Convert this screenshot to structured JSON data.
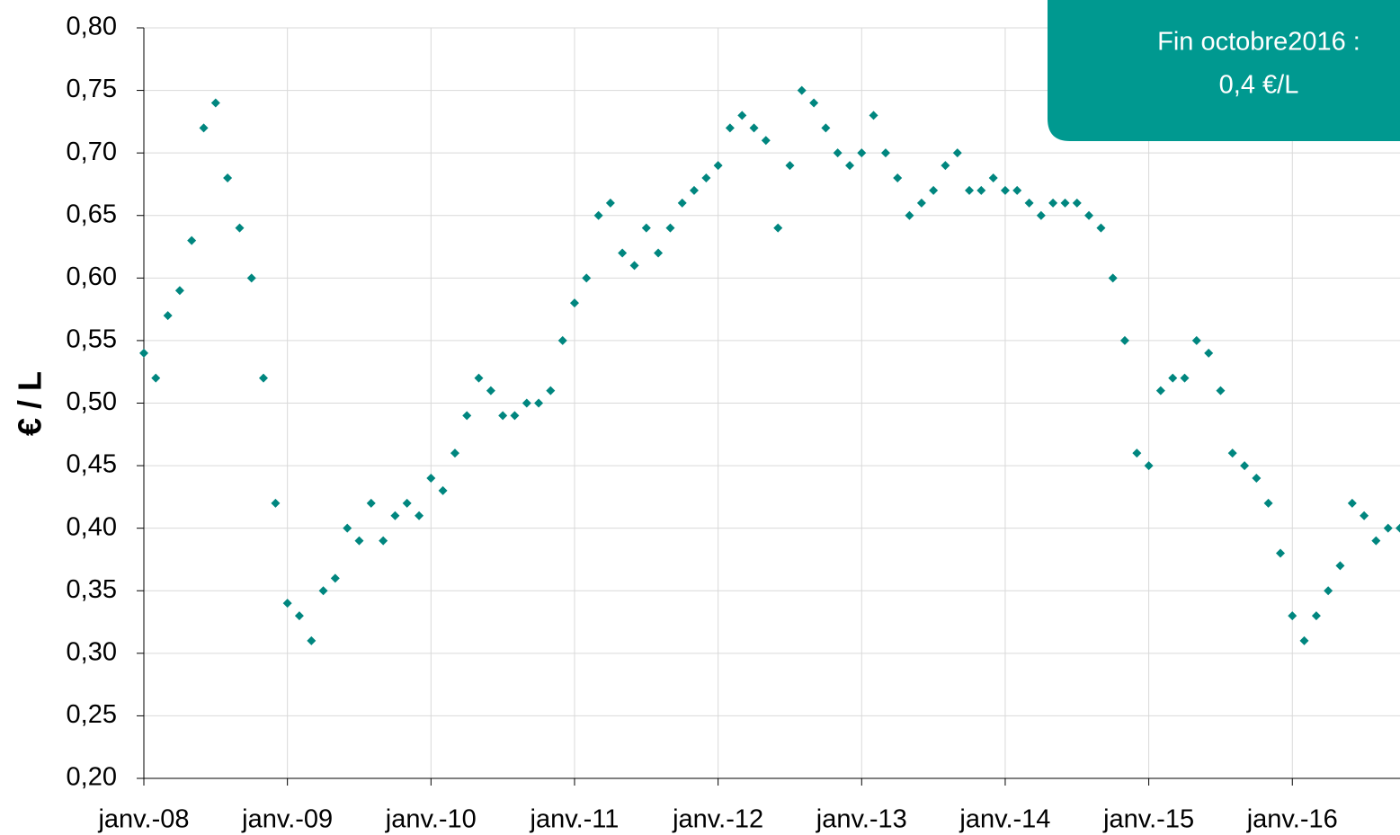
{
  "chart_data": {
    "type": "scatter",
    "ylabel": "€ / L",
    "annotation": [
      "Fin octobre2016 :",
      "0,4 €/L"
    ],
    "color": "#00867f",
    "grid": true,
    "xlim": [
      2008,
      2016.75
    ],
    "xticks": [
      {
        "value": 2008,
        "label": "janv.-08"
      },
      {
        "value": 2009,
        "label": "janv.-09"
      },
      {
        "value": 2010,
        "label": "janv.-10"
      },
      {
        "value": 2011,
        "label": "janv.-11"
      },
      {
        "value": 2012,
        "label": "janv.-12"
      },
      {
        "value": 2013,
        "label": "janv.-13"
      },
      {
        "value": 2014,
        "label": "janv.-14"
      },
      {
        "value": 2015,
        "label": "janv.-15"
      },
      {
        "value": 2016,
        "label": "janv.-16"
      }
    ],
    "ylim": [
      0.2,
      0.8
    ],
    "yticks": [
      {
        "value": 0.2,
        "label": "0,20"
      },
      {
        "value": 0.25,
        "label": "0,25"
      },
      {
        "value": 0.3,
        "label": "0,30"
      },
      {
        "value": 0.35,
        "label": "0,35"
      },
      {
        "value": 0.4,
        "label": "0,40"
      },
      {
        "value": 0.45,
        "label": "0,45"
      },
      {
        "value": 0.5,
        "label": "0,50"
      },
      {
        "value": 0.55,
        "label": "0,55"
      },
      {
        "value": 0.6,
        "label": "0,60"
      },
      {
        "value": 0.65,
        "label": "0,65"
      },
      {
        "value": 0.7,
        "label": "0,70"
      },
      {
        "value": 0.75,
        "label": "0,75"
      },
      {
        "value": 0.8,
        "label": "0,80"
      }
    ],
    "x": [
      2008,
      2008.083,
      2008.167,
      2008.25,
      2008.333,
      2008.417,
      2008.5,
      2008.583,
      2008.667,
      2008.75,
      2008.833,
      2008.917,
      2009,
      2009.083,
      2009.167,
      2009.25,
      2009.333,
      2009.417,
      2009.5,
      2009.583,
      2009.667,
      2009.75,
      2009.833,
      2009.917,
      2010,
      2010.083,
      2010.167,
      2010.25,
      2010.333,
      2010.417,
      2010.5,
      2010.583,
      2010.667,
      2010.75,
      2010.833,
      2010.917,
      2011,
      2011.083,
      2011.167,
      2011.25,
      2011.333,
      2011.417,
      2011.5,
      2011.583,
      2011.667,
      2011.75,
      2011.833,
      2011.917,
      2012,
      2012.083,
      2012.167,
      2012.25,
      2012.333,
      2012.417,
      2012.5,
      2012.583,
      2012.667,
      2012.75,
      2012.833,
      2012.917,
      2013,
      2013.083,
      2013.167,
      2013.25,
      2013.333,
      2013.417,
      2013.5,
      2013.583,
      2013.667,
      2013.75,
      2013.833,
      2013.917,
      2014,
      2014.083,
      2014.167,
      2014.25,
      2014.333,
      2014.417,
      2014.5,
      2014.583,
      2014.667,
      2014.75,
      2014.833,
      2014.917,
      2015,
      2015.083,
      2015.167,
      2015.25,
      2015.333,
      2015.417,
      2015.5,
      2015.583,
      2015.667,
      2015.75,
      2015.833,
      2015.917,
      2016,
      2016.083,
      2016.167,
      2016.25,
      2016.333,
      2016.417,
      2016.5,
      2016.583,
      2016.667,
      2016.75
    ],
    "values": [
      0.54,
      0.52,
      0.57,
      0.59,
      0.63,
      0.72,
      0.74,
      0.68,
      0.64,
      0.6,
      0.52,
      0.42,
      0.34,
      0.33,
      0.31,
      0.35,
      0.36,
      0.4,
      0.39,
      0.42,
      0.39,
      0.41,
      0.42,
      0.41,
      0.44,
      0.43,
      0.46,
      0.49,
      0.52,
      0.51,
      0.49,
      0.49,
      0.5,
      0.5,
      0.51,
      0.55,
      0.58,
      0.6,
      0.65,
      0.66,
      0.62,
      0.61,
      0.64,
      0.62,
      0.64,
      0.66,
      0.67,
      0.68,
      0.69,
      0.72,
      0.73,
      0.72,
      0.71,
      0.64,
      0.69,
      0.75,
      0.74,
      0.72,
      0.7,
      0.69,
      0.7,
      0.73,
      0.7,
      0.68,
      0.65,
      0.66,
      0.67,
      0.69,
      0.7,
      0.67,
      0.67,
      0.68,
      0.67,
      0.67,
      0.66,
      0.65,
      0.66,
      0.66,
      0.66,
      0.65,
      0.64,
      0.6,
      0.55,
      0.46,
      0.45,
      0.51,
      0.52,
      0.52,
      0.55,
      0.54,
      0.51,
      0.46,
      0.45,
      0.44,
      0.42,
      0.38,
      0.33,
      0.31,
      0.33,
      0.35,
      0.37,
      0.42,
      0.41,
      0.39,
      0.4,
      0.4
    ]
  }
}
